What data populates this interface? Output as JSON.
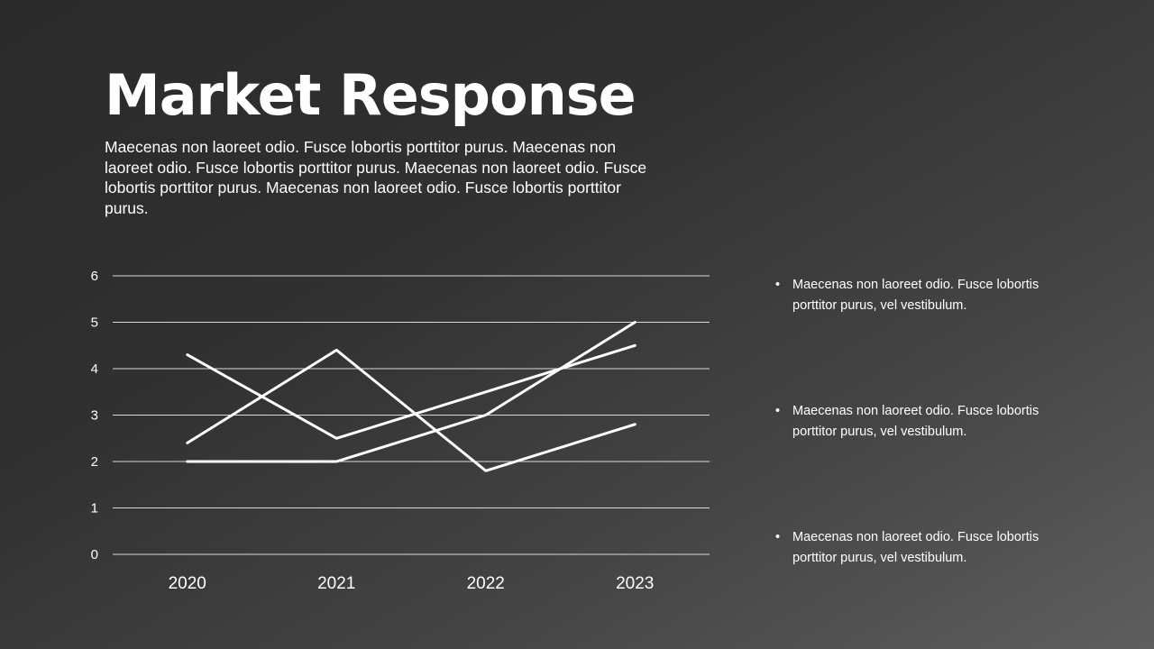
{
  "slide": {
    "title": "Market Response",
    "intro": "Maecenas non laoreet odio. Fusce lobortis porttitor purus. Maecenas non laoreet odio. Fusce lobortis porttitor purus. Maecenas non laoreet odio. Fusce lobortis porttitor purus. Maecenas non laoreet odio. Fusce lobortis porttitor purus."
  },
  "bullets": [
    "Maecenas non laoreet odio. Fusce lobortis porttitor purus, vel vestibulum.",
    "Maecenas non laoreet odio. Fusce lobortis porttitor purus, vel vestibulum.",
    "Maecenas non laoreet odio. Fusce lobortis porttitor purus, vel vestibulum."
  ],
  "colors": {
    "line": "#ffffff",
    "grid": "#d9d9d9",
    "text": "#ffffff"
  },
  "chart_data": {
    "type": "line",
    "categories": [
      "2020",
      "2021",
      "2022",
      "2023"
    ],
    "series": [
      {
        "values": [
          4.3,
          2.5,
          3.5,
          4.5
        ]
      },
      {
        "values": [
          2.4,
          4.4,
          1.8,
          2.8
        ]
      },
      {
        "values": [
          2.0,
          2.0,
          3.0,
          5.0
        ]
      }
    ],
    "ylim": [
      0,
      6
    ],
    "yticks": [
      0,
      1,
      2,
      3,
      4,
      5,
      6
    ],
    "grid": true,
    "legend": "none"
  }
}
